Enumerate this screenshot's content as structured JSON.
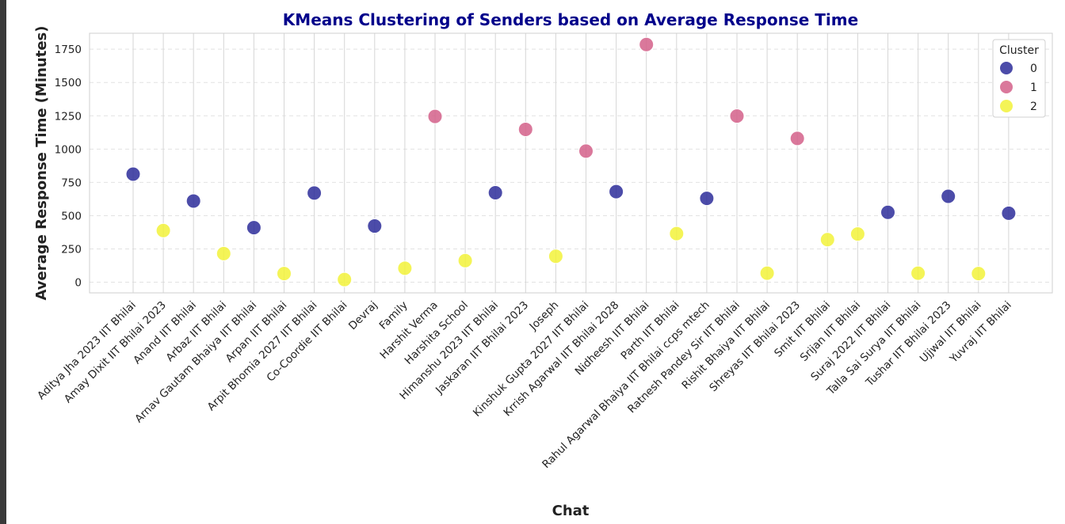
{
  "chart_data": {
    "type": "scatter",
    "title": "KMeans Clustering of Senders based on Average Response Time",
    "xlabel": "Chat",
    "ylabel": "Average Response Time (Minutes)",
    "ylim": [
      -80,
      1870
    ],
    "yticks": [
      0,
      250,
      500,
      750,
      1000,
      1250,
      1500,
      1750
    ],
    "grid": true,
    "legend": {
      "title": "Cluster",
      "placement": "top-right",
      "entries": [
        {
          "name": "0",
          "color": "#2d2d9a"
        },
        {
          "name": "1",
          "color": "#d4608a"
        },
        {
          "name": "2",
          "color": "#f2f23a"
        }
      ]
    },
    "categories": [
      "Aditya Jha 2023 IIT Bhilai",
      "Amay Dixit IIT Bhilai 2023",
      "Anand IIT Bhilai",
      "Arbaz IIT Bhilai",
      "Arnav Gautam Bhaiya IIT Bhilai",
      "Arpan IIT Bhilai",
      "Arpit Bhomia 2027 IIT Bhilai",
      "Co-Coordie IIT Bhilai",
      "Devraj",
      "Family",
      "Harshit Verma",
      "Harshita School",
      "Himanshu 2023 IIT Bhilai",
      "Jaskaran IIT Bhilai 2023",
      "Joseph",
      "Kinshuk Gupta 2027 IIT Bhilai",
      "Krrish Agarwal IIT Bhilai 2028",
      "Nidheesh IIT Bhilai",
      "Parth IIT Bhilai",
      "Rahul Agarwal Bhaiya IIT Bhilai ccps mtech",
      "Ratnesh Pandey Sir IIT Bhilai",
      "Rishit Bhaiya IIT Bhilai",
      "Shreyas IIT Bhilai 2023",
      "Smit IIT Bhilai",
      "Srijan IIT Bhilai",
      "Suraj 2022 IIT Bhilai",
      "Talla Sai Surya IIT Bhilai",
      "Tushar IIT Bhilai 2023",
      "Ujjwal IIT Bhilai",
      "Yuvraj IIT Bhilai"
    ],
    "values": [
      812,
      388,
      610,
      215,
      410,
      65,
      670,
      20,
      422,
      105,
      1245,
      162,
      672,
      1148,
      195,
      985,
      680,
      1785,
      365,
      630,
      1248,
      68,
      1080,
      320,
      362,
      525,
      68,
      645,
      65,
      518
    ],
    "clusters": [
      0,
      2,
      0,
      2,
      0,
      2,
      0,
      2,
      0,
      2,
      1,
      2,
      0,
      1,
      2,
      1,
      0,
      1,
      2,
      0,
      1,
      2,
      1,
      2,
      2,
      0,
      2,
      0,
      2,
      0
    ]
  }
}
